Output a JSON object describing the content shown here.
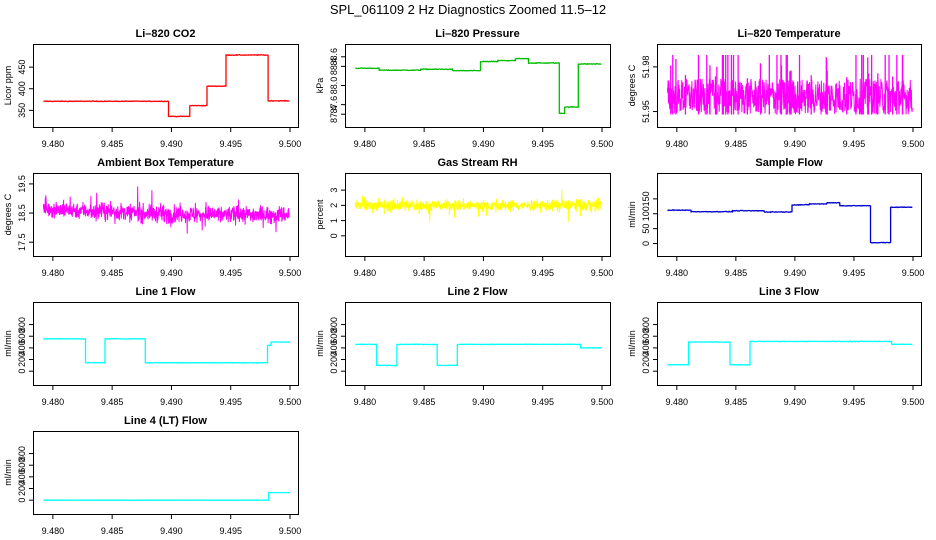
{
  "figure": {
    "suptitle": "SPL_061109  2 Hz Diagnostics Zoomed 11.5–12"
  },
  "chart_data": [
    {
      "type": "line",
      "title": "Li–820 CO2",
      "ylabel": "Licor ppm",
      "xlim": [
        9.479,
        9.5
      ],
      "ylim": [
        330,
        485
      ],
      "xticks": [
        "9.480",
        "9.485",
        "9.490",
        "9.495",
        "9.500"
      ],
      "yticks": [
        {
          "value": 350,
          "label": "350"
        },
        {
          "value": 400,
          "label": "400"
        },
        {
          "value": 450,
          "label": "450"
        }
      ],
      "color": "#ff0000",
      "noise": 0.8,
      "steps": true,
      "series": [
        {
          "x": [
            9.4792,
            9.48975,
            9.48975,
            9.49155,
            9.49155,
            9.493,
            9.493,
            9.4946,
            9.4946,
            9.49815,
            9.49815,
            9.49995
          ],
          "y": [
            371,
            371,
            336,
            336,
            361,
            361,
            406,
            406,
            478,
            478,
            372,
            372
          ]
        }
      ]
    },
    {
      "type": "line",
      "title": "Li–820 Pressure",
      "ylabel": "kPa",
      "xlim": [
        9.479,
        9.5
      ],
      "ylim": [
        87.3,
        88.7
      ],
      "xticks": [
        "9.480",
        "9.485",
        "9.490",
        "9.495",
        "9.500"
      ],
      "yticks": [
        {
          "value": 87.4,
          "label": "87.4"
        },
        {
          "value": 87.6,
          "label": "87.6"
        },
        {
          "value": 88.0,
          "label": "88.0"
        },
        {
          "value": 88.4,
          "label": "88.4"
        },
        {
          "value": 88.6,
          "label": "88.6"
        }
      ],
      "color": "#00bb00",
      "noise": 0.008,
      "steps": true,
      "series": [
        {
          "x": [
            9.4792,
            9.4812,
            9.4812,
            9.4847,
            9.4847,
            9.4874,
            9.4874,
            9.48975,
            9.48975,
            9.4912,
            9.4912,
            9.4927,
            9.4927,
            9.4938,
            9.4938,
            9.4964,
            9.4964,
            9.49685,
            9.49685,
            9.498,
            9.498,
            9.49995
          ],
          "y": [
            88.36,
            88.36,
            88.32,
            88.32,
            88.34,
            88.34,
            88.31,
            88.31,
            88.5,
            88.5,
            88.52,
            88.52,
            88.56,
            88.56,
            88.47,
            88.47,
            87.42,
            87.42,
            87.55,
            87.55,
            88.45,
            88.45
          ]
        }
      ]
    },
    {
      "type": "line",
      "title": "Li–820 Temperature",
      "ylabel": "degrees C",
      "xlim": [
        9.479,
        9.5
      ],
      "ylim": [
        51.945,
        51.99
      ],
      "xticks": [
        "9.480",
        "9.485",
        "9.490",
        "9.495",
        "9.500"
      ],
      "yticks": [
        {
          "value": 51.95,
          "label": "51.95"
        },
        {
          "value": 51.98,
          "label": "51.98"
        }
      ],
      "color": "#ff00ff",
      "band": [
        51.948,
        51.972
      ],
      "spike_top": 51.988,
      "spikes": 45,
      "series": [
        {
          "x": [
            9.4792,
            9.49995
          ],
          "y": [
            51.96,
            51.96
          ]
        }
      ]
    },
    {
      "type": "line",
      "title": "Ambient Box Temperature",
      "ylabel": "degrees C",
      "xlim": [
        9.479,
        9.5
      ],
      "ylim": [
        17.3,
        19.6
      ],
      "xticks": [
        "9.480",
        "9.485",
        "9.490",
        "9.495",
        "9.500"
      ],
      "yticks": [
        {
          "value": 17.5,
          "label": "17.5"
        },
        {
          "value": 18.5,
          "label": "18.5"
        },
        {
          "value": 19.5,
          "label": "19.5"
        }
      ],
      "color": "#ff00ff",
      "noise": 0.28,
      "dense": true,
      "series": [
        {
          "x": [
            9.4792,
            9.485,
            9.49,
            9.49995
          ],
          "y": [
            18.65,
            18.55,
            18.45,
            18.45
          ]
        }
      ]
    },
    {
      "type": "line",
      "title": "Gas Stream RH",
      "ylabel": "percent",
      "xlim": [
        9.479,
        9.5
      ],
      "ylim": [
        -0.8,
        3.6
      ],
      "xticks": [
        "9.480",
        "9.485",
        "9.490",
        "9.495",
        "9.500"
      ],
      "yticks": [
        {
          "value": 0,
          "label": "0"
        },
        {
          "value": 1,
          "label": "1"
        },
        {
          "value": 2,
          "label": "2"
        },
        {
          "value": 3,
          "label": "3"
        }
      ],
      "color": "#ffff00",
      "noise": 0.35,
      "dense": true,
      "series": [
        {
          "x": [
            9.4792,
            9.49995
          ],
          "y": [
            2.0,
            2.0
          ]
        }
      ]
    },
    {
      "type": "line",
      "title": "Sample Flow",
      "ylabel": "ml/min",
      "xlim": [
        9.479,
        9.5
      ],
      "ylim": [
        -15,
        210
      ],
      "xticks": [
        "9.480",
        "9.485",
        "9.490",
        "9.495",
        "9.500"
      ],
      "yticks": [
        {
          "value": 0,
          "label": "0"
        },
        {
          "value": 50,
          "label": "50"
        },
        {
          "value": 100,
          "label": "100"
        },
        {
          "value": 150,
          "label": "150"
        }
      ],
      "color": "#0000cc",
      "noise": 1.2,
      "steps": true,
      "series": [
        {
          "x": [
            9.4792,
            9.4812,
            9.4812,
            9.4847,
            9.4847,
            9.4874,
            9.4874,
            9.48975,
            9.48975,
            9.4912,
            9.4912,
            9.4927,
            9.4927,
            9.4938,
            9.4938,
            9.4964,
            9.4964,
            9.4981,
            9.4981,
            9.49995
          ],
          "y": [
            112,
            112,
            107,
            107,
            110,
            110,
            106,
            106,
            130,
            130,
            133,
            133,
            137,
            137,
            127,
            127,
            3,
            3,
            122,
            122
          ]
        }
      ]
    },
    {
      "type": "line",
      "title": "Line 1 Flow",
      "ylabel": "ml/min",
      "xlim": [
        9.479,
        9.5
      ],
      "ylim": [
        -100,
        1050
      ],
      "xticks": [
        "9.480",
        "9.485",
        "9.490",
        "9.495",
        "9.500"
      ],
      "yticks": [
        {
          "value": 0,
          "label": "0"
        },
        {
          "value": 200,
          "label": "200"
        },
        {
          "value": 400,
          "label": "400"
        },
        {
          "value": 600,
          "label": "600"
        },
        {
          "value": 800,
          "label": "800"
        }
      ],
      "color": "#00ffff",
      "noise": 5,
      "steps": true,
      "series": [
        {
          "x": [
            9.4792,
            9.48275,
            9.48275,
            9.4844,
            9.4844,
            9.4878,
            9.4878,
            9.4981,
            9.4981,
            9.4984,
            9.4984,
            9.49995
          ],
          "y": [
            555,
            555,
            145,
            145,
            555,
            555,
            145,
            145,
            440,
            440,
            500,
            500
          ]
        }
      ]
    },
    {
      "type": "line",
      "title": "Line 2 Flow",
      "ylabel": "ml/min",
      "xlim": [
        9.479,
        9.5
      ],
      "ylim": [
        -100,
        1050
      ],
      "xticks": [
        "9.480",
        "9.485",
        "9.490",
        "9.495",
        "9.500"
      ],
      "yticks": [
        {
          "value": 0,
          "label": "0"
        },
        {
          "value": 200,
          "label": "200"
        },
        {
          "value": 400,
          "label": "400"
        },
        {
          "value": 600,
          "label": "600"
        },
        {
          "value": 800,
          "label": "800"
        }
      ],
      "color": "#00ffff",
      "noise": 5,
      "steps": true,
      "series": [
        {
          "x": [
            9.4792,
            9.481,
            9.481,
            9.4827,
            9.4827,
            9.4861,
            9.4861,
            9.4878,
            9.4878,
            9.4982,
            9.4982,
            9.49995
          ],
          "y": [
            460,
            460,
            100,
            100,
            460,
            460,
            100,
            100,
            460,
            460,
            400,
            400
          ]
        }
      ]
    },
    {
      "type": "line",
      "title": "Line 3 Flow",
      "ylabel": "ml/min",
      "xlim": [
        9.479,
        9.5
      ],
      "ylim": [
        -100,
        1050
      ],
      "xticks": [
        "9.480",
        "9.485",
        "9.490",
        "9.495",
        "9.500"
      ],
      "yticks": [
        {
          "value": 0,
          "label": "0"
        },
        {
          "value": 200,
          "label": "200"
        },
        {
          "value": 400,
          "label": "400"
        },
        {
          "value": 600,
          "label": "600"
        },
        {
          "value": 800,
          "label": "800"
        }
      ],
      "color": "#00ffff",
      "noise": 5,
      "steps": true,
      "series": [
        {
          "x": [
            9.4792,
            9.481,
            9.481,
            9.4845,
            9.4845,
            9.4862,
            9.4862,
            9.4982,
            9.4982,
            9.49995
          ],
          "y": [
            110,
            110,
            500,
            500,
            110,
            110,
            510,
            510,
            460,
            460
          ]
        }
      ]
    },
    {
      "type": "line",
      "title": "Line 4 (LT) Flow",
      "ylabel": "ml/min",
      "xlim": [
        9.479,
        9.5
      ],
      "ylim": [
        -100,
        1050
      ],
      "xticks": [
        "9.480",
        "9.485",
        "9.490",
        "9.495",
        "9.500"
      ],
      "yticks": [
        {
          "value": 0,
          "label": "0"
        },
        {
          "value": 200,
          "label": "200"
        },
        {
          "value": 400,
          "label": "400"
        },
        {
          "value": 600,
          "label": "600"
        },
        {
          "value": 800,
          "label": "800"
        }
      ],
      "color": "#00ffff",
      "noise": 1,
      "steps": true,
      "series": [
        {
          "x": [
            9.4792,
            9.4982,
            9.4982,
            9.49995
          ],
          "y": [
            0,
            0,
            130,
            130
          ]
        }
      ]
    }
  ]
}
